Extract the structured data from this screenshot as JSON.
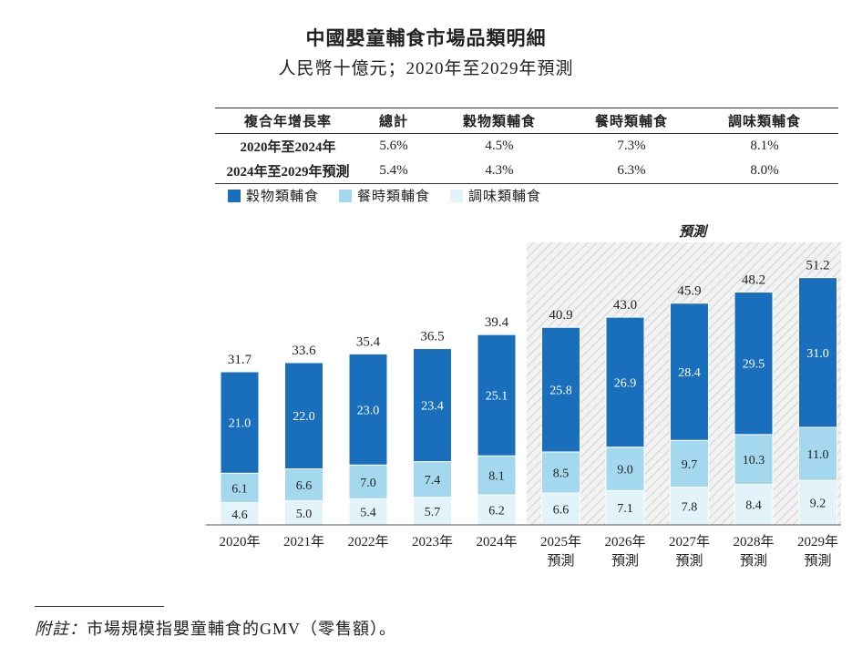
{
  "title": "中國嬰童輔食市場品類明細",
  "subtitle": "人民幣十億元；2020年至2029年預測",
  "cagr_table": {
    "headers": [
      "複合年增長率",
      "總計",
      "穀物類輔食",
      "餐時類輔食",
      "調味類輔食"
    ],
    "rows": [
      [
        "2020年至2024年",
        "5.6%",
        "4.5%",
        "7.3%",
        "8.1%"
      ],
      [
        "2024年至2029年預測",
        "5.4%",
        "4.3%",
        "6.3%",
        "8.0%"
      ]
    ]
  },
  "colors": {
    "cereal": "#1a6fbd",
    "meal": "#a3d8ef",
    "seasoning": "#e2f3fa",
    "hatch_bg": "#f2f2f2",
    "hatch_line": "#c4c4c4"
  },
  "forecast_label": "預測",
  "chart_data": {
    "type": "bar",
    "stacked": true,
    "categories": [
      "2020年",
      "2021年",
      "2022年",
      "2023年",
      "2024年",
      "2025年",
      "2026年",
      "2027年",
      "2028年",
      "2029年"
    ],
    "category_sublabels": [
      "",
      "",
      "",
      "",
      "",
      "預測",
      "預測",
      "預測",
      "預測",
      "預測"
    ],
    "forecast_start_index": 5,
    "series": [
      {
        "name": "調味類輔食",
        "color_key": "seasoning",
        "values": [
          4.6,
          5.0,
          5.4,
          5.7,
          6.2,
          6.6,
          7.1,
          7.8,
          8.4,
          9.2
        ]
      },
      {
        "name": "餐時類輔食",
        "color_key": "meal",
        "values": [
          6.1,
          6.6,
          7.0,
          7.4,
          8.1,
          8.5,
          9.0,
          9.7,
          10.3,
          11.0
        ]
      },
      {
        "name": "穀物類輔食",
        "color_key": "cereal",
        "values": [
          21.0,
          22.0,
          23.0,
          23.4,
          25.1,
          25.8,
          26.9,
          28.4,
          29.5,
          31.0
        ]
      }
    ],
    "totals": [
      31.7,
      33.6,
      35.4,
      36.5,
      39.4,
      40.9,
      43.0,
      45.9,
      48.2,
      51.2
    ],
    "title": "中國嬰童輔食市場品類明細",
    "ylabel": "人民幣十億元",
    "ylim": [
      0,
      60
    ],
    "legend": [
      "穀物類輔食",
      "餐時類輔食",
      "調味類輔食"
    ],
    "legend_position": "top-left"
  },
  "note": {
    "label": "附註：",
    "text": "市場規模指嬰童輔食的GMV（零售額）。"
  }
}
